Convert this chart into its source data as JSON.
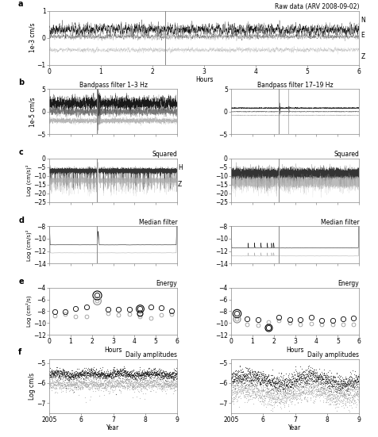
{
  "fig_width": 4.76,
  "fig_height": 5.51,
  "dpi": 100,
  "color_H": "#000000",
  "color_Z": "#aaaaaa",
  "color_vline": "#888888",
  "seed": 42,
  "panel_a": {
    "title": "Raw data (ARV 2008-09-02)",
    "ylabel": "1e-3 cm/s",
    "xlabel": "Hours",
    "xlim": [
      0,
      6
    ],
    "ylim": [
      -1,
      1
    ],
    "yticks": [
      -1,
      0,
      1
    ],
    "xticks": [
      0,
      1,
      2,
      3,
      4,
      5,
      6
    ],
    "vline_x": 2.25
  },
  "panel_b_left": {
    "title": "Bandpass filter 1–3 Hz",
    "ylabel": "1e-5 cm/s",
    "xlim": [
      0,
      6
    ],
    "ylim": [
      -5,
      5
    ],
    "yticks": [
      -5,
      0,
      5
    ],
    "xticks": [
      0,
      1,
      2,
      3,
      4,
      5,
      6
    ],
    "vline_x": 2.25
  },
  "panel_b_right": {
    "title": "Bandpass filter 17–19 Hz",
    "xlim": [
      0,
      6
    ],
    "ylim": [
      -5,
      5
    ],
    "yticks": [
      -5,
      0,
      5
    ],
    "xticks": [
      0,
      1,
      2,
      3,
      4,
      5,
      6
    ],
    "vline_x": 2.25
  },
  "panel_c_left": {
    "title": "Squared",
    "ylabel": "Log (cm/s)²",
    "xlim": [
      0,
      6
    ],
    "ylim": [
      -25,
      0
    ],
    "yticks": [
      0,
      -5,
      -10,
      -15,
      -20,
      -25
    ],
    "xticks": [
      0,
      1,
      2,
      3,
      4,
      5,
      6
    ],
    "vline_x": 2.25
  },
  "panel_c_right": {
    "title": "Squared",
    "xlim": [
      0,
      6
    ],
    "ylim": [
      -25,
      0
    ],
    "yticks": [
      0,
      -5,
      -10,
      -15,
      -20,
      -25
    ],
    "xticks": [
      0,
      1,
      2,
      3,
      4,
      5,
      6
    ],
    "vline_x": 2.25
  },
  "panel_d_left": {
    "title": "Median filter",
    "ylabel": "Log (cm/s)²",
    "xlim": [
      0,
      6
    ],
    "ylim": [
      -14,
      -8
    ],
    "yticks": [
      -8,
      -10,
      -12,
      -14
    ],
    "xticks": [
      0,
      1,
      2,
      3,
      4,
      5,
      6
    ],
    "vline_x": 2.25
  },
  "panel_d_right": {
    "title": "Median filter",
    "xlim": [
      0,
      6
    ],
    "ylim": [
      -14,
      -8
    ],
    "yticks": [
      -8,
      -10,
      -12,
      -14
    ],
    "xticks": [
      0,
      1,
      2,
      3,
      4,
      5,
      6
    ],
    "vline_x": 2.25
  },
  "panel_e_left": {
    "title": "Energy",
    "ylabel": "Log (cm²/s)",
    "xlabel": "Hours",
    "xlim": [
      0,
      6
    ],
    "ylim": [
      -12,
      -4
    ],
    "yticks": [
      -4,
      -6,
      -8,
      -10,
      -12
    ],
    "xticks": [
      0,
      1,
      2,
      3,
      4,
      5,
      6
    ]
  },
  "panel_e_right": {
    "title": "Energy",
    "xlabel": "Hours",
    "xlim": [
      0,
      6
    ],
    "ylim": [
      -12,
      -4
    ],
    "yticks": [
      -4,
      -6,
      -8,
      -10,
      -12
    ],
    "xticks": [
      0,
      1,
      2,
      3,
      4,
      5,
      6
    ]
  },
  "panel_f_left": {
    "title": "Daily amplitudes",
    "ylabel": "Log cm/s",
    "xlabel": "Year",
    "xlim": [
      2005,
      2009
    ],
    "ylim": [
      -7.5,
      -4.8
    ],
    "yticks": [
      -5,
      -6,
      -7
    ],
    "xtick_vals": [
      2005,
      2006,
      2007,
      2008,
      2009
    ],
    "xtick_labels": [
      "2005",
      "6",
      "7",
      "8",
      "9"
    ]
  },
  "panel_f_right": {
    "title": "Daily amplitudes",
    "xlabel": "Year",
    "xlim": [
      2005,
      2009
    ],
    "ylim": [
      -7.5,
      -4.8
    ],
    "yticks": [
      -5,
      -6,
      -7
    ],
    "xtick_vals": [
      2005,
      2006,
      2007,
      2008,
      2009
    ],
    "xtick_labels": [
      "2005",
      "6",
      "7",
      "8",
      "9"
    ]
  }
}
